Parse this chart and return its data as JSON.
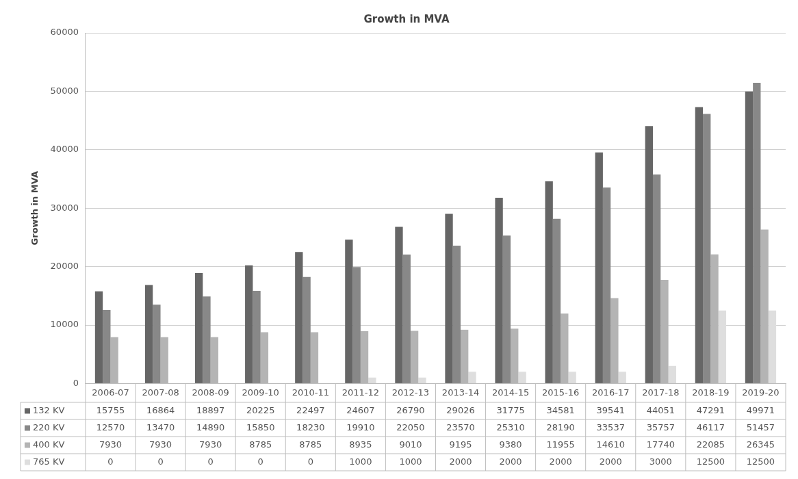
{
  "chart_data": {
    "type": "bar",
    "title": "Growth in MVA",
    "ylabel": "Growth in MVA",
    "categories": [
      "2006-07",
      "2007-08",
      "2008-09",
      "2009-10",
      "2010-11",
      "2011-12",
      "2012-13",
      "2013-14",
      "2014-15",
      "2015-16",
      "2016-17",
      "2017-18",
      "2018-19",
      "2019-20"
    ],
    "series": [
      {
        "name": "132 KV",
        "color": "#666666",
        "values": [
          15755,
          16864,
          18897,
          20225,
          22497,
          24607,
          26790,
          29026,
          31775,
          34581,
          39541,
          44051,
          47291,
          49971
        ]
      },
      {
        "name": "220 KV",
        "color": "#888888",
        "values": [
          12570,
          13470,
          14890,
          15850,
          18230,
          19910,
          22050,
          23570,
          25310,
          28190,
          33537,
          35757,
          46117,
          51457
        ]
      },
      {
        "name": "400 KV",
        "color": "#b4b4b4",
        "values": [
          7930,
          7930,
          7930,
          8785,
          8785,
          8935,
          9010,
          9195,
          9380,
          11955,
          14610,
          17740,
          22085,
          26345
        ]
      },
      {
        "name": "765 KV",
        "color": "#dedede",
        "values": [
          0,
          0,
          0,
          0,
          0,
          1000,
          1000,
          2000,
          2000,
          2000,
          2000,
          3000,
          12500,
          12500
        ]
      }
    ],
    "ylim": [
      0,
      60000
    ],
    "yticks": [
      0,
      10000,
      20000,
      30000,
      40000,
      50000,
      60000
    ],
    "grid": "y",
    "data_labels": true,
    "legend": "bottom left"
  }
}
